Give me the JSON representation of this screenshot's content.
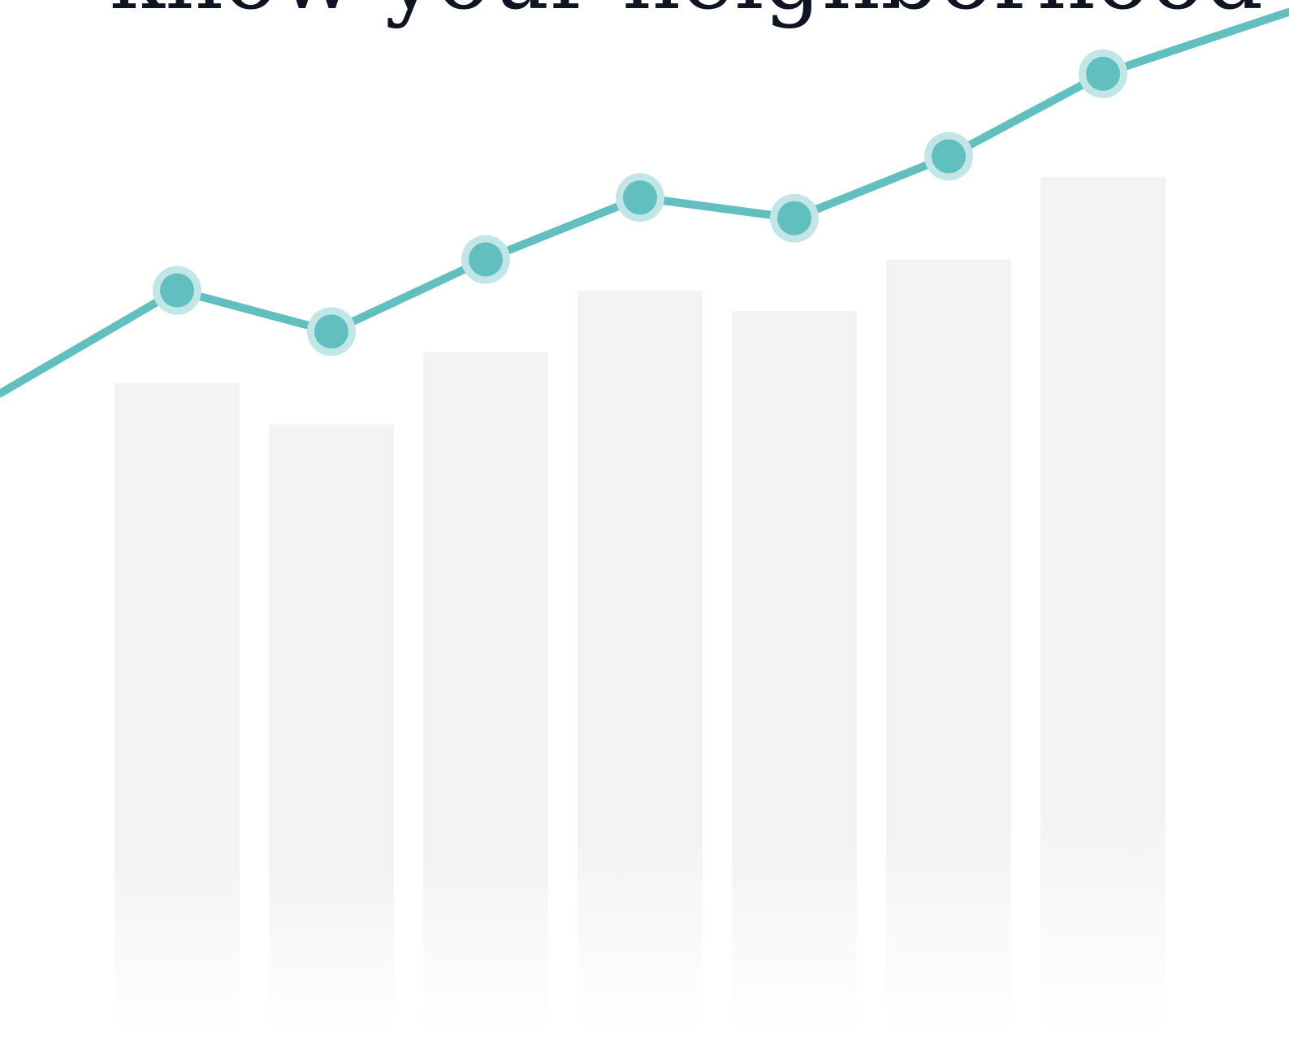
{
  "headline": {
    "text": "know your neighborhood"
  },
  "colors": {
    "background": "#ffffff",
    "bar": "#f2f4f3",
    "line": "#62bfbf",
    "halo": "#c2e6e6",
    "text": "#0e1422"
  },
  "chart_data": {
    "type": "bar",
    "title": "",
    "xlabel": "",
    "ylabel": "",
    "grid": false,
    "legend": "none",
    "ylim": [
      0,
      100
    ],
    "categories": [
      "",
      "",
      "",
      "",
      "",
      "",
      ""
    ],
    "bars": {
      "values": [
        63,
        59,
        66,
        72,
        70,
        75,
        83
      ]
    },
    "line": {
      "values": [
        72,
        68,
        75,
        81,
        79,
        85,
        93
      ],
      "start_value": 62,
      "end_value": 99
    }
  }
}
